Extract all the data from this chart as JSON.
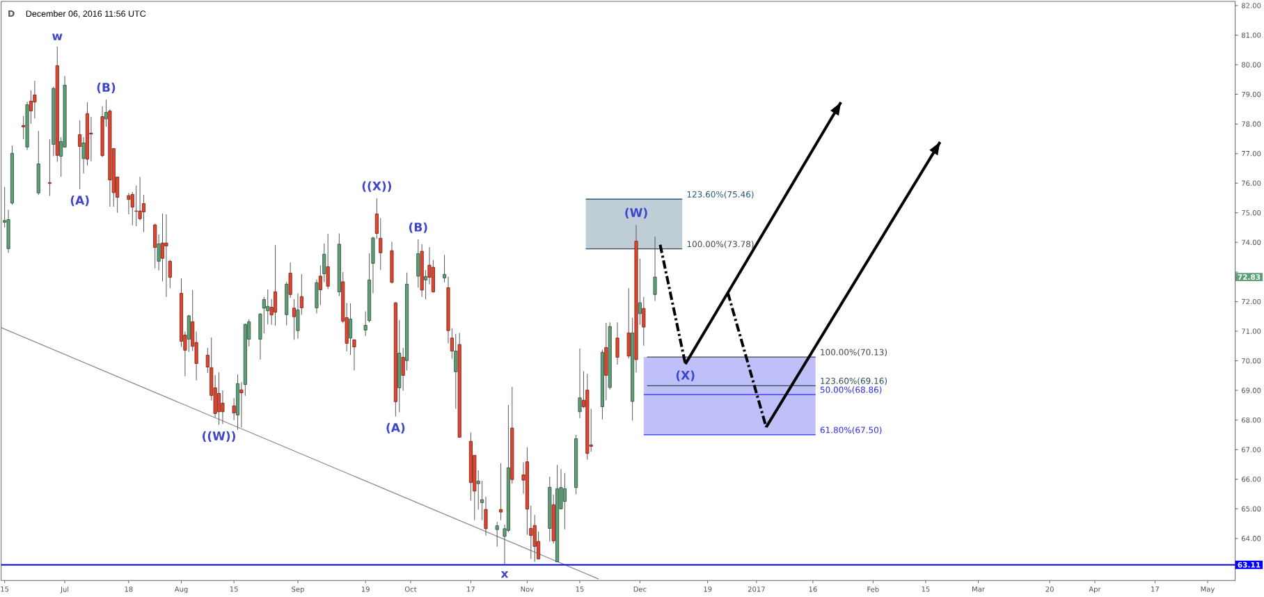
{
  "chart_data": {
    "type": "candlestick",
    "title": "D",
    "subtitle": "December 06, 2016 11:56 UTC",
    "x": [
      "2016-06-15",
      "2016-06-16",
      "2016-06-17",
      "2016-06-20",
      "2016-06-21",
      "2016-06-22",
      "2016-06-23",
      "2016-06-24",
      "2016-06-27",
      "2016-06-28",
      "2016-06-29",
      "2016-06-30",
      "2016-07-01",
      "2016-07-05",
      "2016-07-06",
      "2016-07-07",
      "2016-07-08",
      "2016-07-11",
      "2016-07-12",
      "2016-07-13",
      "2016-07-14",
      "2016-07-15",
      "2016-07-18",
      "2016-07-19",
      "2016-07-20",
      "2016-07-21",
      "2016-07-22",
      "2016-07-25",
      "2016-07-26",
      "2016-07-27",
      "2016-07-28",
      "2016-07-29",
      "2016-08-01",
      "2016-08-02",
      "2016-08-03",
      "2016-08-04",
      "2016-08-05",
      "2016-08-08",
      "2016-08-09",
      "2016-08-10",
      "2016-08-11",
      "2016-08-12",
      "2016-08-15",
      "2016-08-16",
      "2016-08-17",
      "2016-08-18",
      "2016-08-19",
      "2016-08-22",
      "2016-08-23",
      "2016-08-24",
      "2016-08-25",
      "2016-08-26",
      "2016-08-29",
      "2016-08-30",
      "2016-08-31",
      "2016-09-01",
      "2016-09-02",
      "2016-09-06",
      "2016-09-07",
      "2016-09-08",
      "2016-09-09",
      "2016-09-12",
      "2016-09-13",
      "2016-09-14",
      "2016-09-15",
      "2016-09-16",
      "2016-09-19",
      "2016-09-20",
      "2016-09-21",
      "2016-09-22",
      "2016-09-23",
      "2016-09-26",
      "2016-09-27",
      "2016-09-28",
      "2016-09-29",
      "2016-09-30",
      "2016-10-03",
      "2016-10-04",
      "2016-10-05",
      "2016-10-06",
      "2016-10-07",
      "2016-10-10",
      "2016-10-11",
      "2016-10-12",
      "2016-10-13",
      "2016-10-14",
      "2016-10-17",
      "2016-10-18",
      "2016-10-19",
      "2016-10-20",
      "2016-10-21",
      "2016-10-24",
      "2016-10-25",
      "2016-10-26",
      "2016-10-27",
      "2016-10-28",
      "2016-10-31",
      "2016-11-01",
      "2016-11-02",
      "2016-11-03",
      "2016-11-04",
      "2016-11-07",
      "2016-11-08",
      "2016-11-09",
      "2016-11-10",
      "2016-11-11",
      "2016-11-14",
      "2016-11-15",
      "2016-11-16",
      "2016-11-17",
      "2016-11-18",
      "2016-11-21",
      "2016-11-22",
      "2016-11-23",
      "2016-11-25",
      "2016-11-28",
      "2016-11-29",
      "2016-11-30",
      "2016-12-01",
      "2016-12-02",
      "2016-12-05"
    ],
    "ohlc": [
      [
        74.68,
        75.87,
        74.51,
        74.74
      ],
      [
        73.79,
        75.11,
        73.65,
        74.77
      ],
      [
        75.33,
        77.27,
        75.28,
        77.01
      ],
      [
        77.95,
        78.27,
        77.48,
        77.9
      ],
      [
        77.22,
        78.75,
        77.12,
        78.65
      ],
      [
        78.77,
        79.13,
        78.01,
        78.44
      ],
      [
        78.98,
        79.46,
        78.19,
        78.74
      ],
      [
        75.67,
        77.76,
        75.6,
        76.65
      ],
      [
        76.02,
        77.48,
        75.57,
        75.99
      ],
      [
        77.31,
        79.26,
        76.91,
        79.2
      ],
      [
        79.97,
        80.61,
        76.72,
        76.94
      ],
      [
        76.91,
        77.55,
        76.22,
        77.41
      ],
      [
        77.22,
        79.62,
        77.2,
        79.31
      ],
      [
        77.64,
        78.12,
        75.8,
        77.24
      ],
      [
        76.83,
        77.56,
        76.33,
        77.36
      ],
      [
        78.35,
        78.73,
        76.6,
        76.81
      ],
      [
        77.69,
        78.24,
        76.74,
        77.66
      ],
      [
        78.25,
        78.6,
        76.88,
        76.93
      ],
      [
        78.17,
        78.82,
        77.91,
        78.39
      ],
      [
        78.44,
        78.49,
        75.21,
        76.11
      ],
      [
        77.17,
        77.18,
        75.21,
        75.68
      ],
      [
        76.21,
        76.22,
        75.0,
        75.52
      ],
      [
        75.58,
        75.67,
        74.95,
        75.45
      ],
      [
        75.62,
        75.7,
        74.58,
        75.19
      ],
      [
        75.06,
        75.92,
        74.55,
        75.05
      ],
      [
        75.06,
        76.21,
        74.74,
        74.8
      ],
      [
        75.31,
        75.6,
        74.35,
        75.03
      ],
      [
        74.59,
        74.64,
        73.12,
        73.83
      ],
      [
        73.36,
        74.27,
        73.05,
        73.95
      ],
      [
        73.98,
        74.97,
        72.68,
        73.46
      ],
      [
        73.98,
        74.95,
        72.16,
        73.88
      ],
      [
        73.36,
        73.41,
        72.45,
        72.82
      ],
      [
        72.28,
        72.78,
        70.47,
        70.66
      ],
      [
        70.87,
        70.99,
        69.48,
        70.36
      ],
      [
        70.73,
        71.55,
        70.3,
        71.52
      ],
      [
        71.32,
        72.39,
        70.33,
        70.49
      ],
      [
        70.62,
        70.99,
        69.34,
        69.91
      ],
      [
        70.19,
        70.44,
        69.59,
        69.79
      ],
      [
        69.77,
        70.79,
        68.66,
        68.83
      ],
      [
        69.09,
        69.52,
        68.09,
        68.22
      ],
      [
        68.9,
        69.61,
        67.84,
        68.28
      ],
      [
        68.57,
        69.0,
        67.87,
        68.28
      ],
      [
        68.48,
        68.74,
        68.0,
        68.24
      ],
      [
        68.17,
        69.54,
        67.67,
        69.23
      ],
      [
        69.02,
        69.28,
        67.75,
        68.92
      ],
      [
        69.2,
        71.26,
        68.82,
        71.23
      ],
      [
        70.73,
        71.4,
        70.49,
        71.32
      ],
      [
        70.73,
        71.61,
        70.04,
        71.58
      ],
      [
        71.78,
        72.16,
        70.93,
        72.07
      ],
      [
        71.69,
        72.41,
        71.23,
        71.84
      ],
      [
        71.81,
        72.08,
        71.22,
        71.55
      ],
      [
        72.33,
        73.91,
        71.18,
        71.64
      ],
      [
        71.56,
        72.67,
        71.2,
        72.59
      ],
      [
        72.96,
        73.32,
        72.12,
        72.24
      ],
      [
        71.78,
        72.08,
        70.71,
        71.49
      ],
      [
        71.02,
        72.28,
        70.75,
        71.72
      ],
      [
        72.17,
        72.93,
        71.55,
        71.79
      ],
      [
        71.79,
        72.75,
        71.6,
        72.64
      ],
      [
        72.86,
        73.23,
        71.88,
        72.4
      ],
      [
        72.94,
        73.96,
        72.66,
        73.6
      ],
      [
        73.18,
        74.29,
        72.42,
        72.52
      ],
      [
        72.33,
        74.3,
        72.19,
        73.94
      ],
      [
        72.67,
        73.0,
        71.27,
        71.34
      ],
      [
        71.46,
        71.96,
        70.32,
        70.59
      ],
      [
        70.77,
        71.94,
        70.2,
        71.41
      ],
      [
        70.71,
        70.72,
        69.67,
        70.47
      ],
      [
        71.04,
        71.67,
        70.84,
        71.2
      ],
      [
        71.36,
        73.63,
        71.3,
        72.73
      ],
      [
        73.29,
        74.19,
        72.28,
        74.15
      ],
      [
        74.96,
        75.49,
        74.12,
        74.3
      ],
      [
        74.14,
        74.82,
        73.06,
        73.65
      ],
      [
        73.72,
        74.02,
        72.61,
        72.65
      ],
      [
        71.96,
        71.98,
        68.12,
        68.62
      ],
      [
        69.09,
        71.38,
        68.26,
        70.26
      ],
      [
        70.12,
        70.44,
        68.99,
        69.51
      ],
      [
        70.01,
        72.98,
        69.67,
        72.59
      ],
      [
        72.86,
        74.1,
        72.47,
        73.62
      ],
      [
        73.7,
        73.94,
        72.16,
        72.39
      ],
      [
        72.73,
        73.07,
        72.08,
        72.85
      ],
      [
        73.23,
        73.84,
        72.58,
        72.82
      ],
      [
        73.16,
        73.41,
        72.3,
        72.33
      ],
      [
        72.8,
        73.58,
        72.65,
        72.92
      ],
      [
        72.47,
        72.84,
        70.59,
        71.02
      ],
      [
        70.77,
        71.1,
        70.07,
        70.33
      ],
      [
        69.63,
        70.91,
        68.38,
        70.33
      ],
      [
        70.55,
        70.94,
        67.4,
        67.42
      ],
      [
        67.28,
        67.58,
        65.28,
        65.89
      ],
      [
        66.81,
        66.82,
        64.62,
        65.6
      ],
      [
        65.85,
        66.3,
        64.97,
        65.94
      ],
      [
        65.21,
        65.95,
        64.62,
        65.31
      ],
      [
        64.98,
        65.41,
        64.1,
        64.33
      ],
      [
        64.3,
        64.56,
        63.72,
        64.43
      ],
      [
        64.98,
        66.54,
        64.62,
        64.89
      ],
      [
        64.07,
        64.47,
        63.11,
        64.33
      ],
      [
        64.27,
        68.51,
        64.21,
        66.39
      ],
      [
        67.73,
        69.12,
        65.85,
        65.99
      ],
      [
        66.15,
        66.57,
        65.51,
        65.97
      ],
      [
        66.59,
        67.08,
        64.12,
        64.99
      ],
      [
        64.34,
        65.11,
        63.31,
        64.1
      ],
      [
        64.44,
        64.8,
        63.21,
        63.73
      ],
      [
        63.9,
        64.23,
        63.3,
        63.31
      ],
      [
        64.34,
        66.09,
        63.89,
        65.73
      ],
      [
        65.14,
        65.48,
        63.83,
        63.92
      ],
      [
        63.21,
        66.48,
        63.2,
        65.68
      ],
      [
        65.0,
        66.34,
        64.99,
        65.72
      ],
      [
        65.25,
        66.21,
        64.31,
        65.68
      ],
      [
        65.72,
        67.5,
        65.49,
        67.37
      ],
      [
        68.28,
        70.41,
        68.06,
        68.75
      ],
      [
        68.67,
        69.65,
        68.4,
        68.45
      ],
      [
        69.01,
        69.56,
        66.66,
        66.87
      ],
      [
        67.16,
        68.38,
        66.93,
        67.11
      ],
      [
        68.45,
        70.38,
        68.02,
        70.29
      ],
      [
        70.45,
        71.28,
        68.67,
        69.51
      ],
      [
        69.1,
        71.3,
        69.03,
        71.16
      ],
      [
        70.77,
        71.3,
        69.87,
        70.12
      ],
      [
        70.94,
        72.45,
        70.08,
        70.16
      ],
      [
        68.63,
        71.45,
        67.98,
        70.94
      ],
      [
        74.04,
        74.59,
        69.61,
        70.04
      ],
      [
        71.59,
        73.45,
        71.22,
        71.96
      ],
      [
        71.77,
        72.16,
        70.51,
        71.14
      ],
      [
        72.24,
        74.19,
        72.02,
        72.83
      ]
    ],
    "colors": [
      "#5f9f77",
      "#5f9f77",
      "#5f9f77",
      "#e04530",
      "#5f9f77",
      "#e04530",
      "#e04530",
      "#5f9f77",
      "#e04530",
      "#5f9f77",
      "#e04530",
      "#5f9f77",
      "#5f9f77",
      "#e04530",
      "#5f9f77",
      "#e04530",
      "#e04530",
      "#e04530",
      "#5f9f77",
      "#e04530",
      "#e04530",
      "#e04530",
      "#e04530",
      "#e04530",
      "#e04530",
      "#e04530",
      "#e04530",
      "#e04530",
      "#5f9f77",
      "#e04530",
      "#e04530",
      "#e04530",
      "#e04530",
      "#e04530",
      "#5f9f77",
      "#e04530",
      "#e04530",
      "#e04530",
      "#e04530",
      "#e04530",
      "#e04530",
      "#e04530",
      "#e04530",
      "#5f9f77",
      "#e04530",
      "#5f9f77",
      "#5f9f77",
      "#5f9f77",
      "#5f9f77",
      "#5f9f77",
      "#e04530",
      "#e04530",
      "#5f9f77",
      "#e04530",
      "#e04530",
      "#5f9f77",
      "#e04530",
      "#5f9f77",
      "#e04530",
      "#5f9f77",
      "#e04530",
      "#5f9f77",
      "#e04530",
      "#e04530",
      "#5f9f77",
      "#e04530",
      "#5f9f77",
      "#5f9f77",
      "#5f9f77",
      "#e04530",
      "#e04530",
      "#e04530",
      "#e04530",
      "#5f9f77",
      "#e04530",
      "#5f9f77",
      "#5f9f77",
      "#e04530",
      "#5f9f77",
      "#e04530",
      "#e04530",
      "#5f9f77",
      "#e04530",
      "#e04530",
      "#5f9f77",
      "#e04530",
      "#e04530",
      "#e04530",
      "#5f9f77",
      "#5f9f77",
      "#e04530",
      "#5f9f77",
      "#e04530",
      "#5f9f77",
      "#5f9f77",
      "#e04530",
      "#e04530",
      "#e04530",
      "#e04530",
      "#e04530",
      "#e04530",
      "#5f9f77",
      "#e04530",
      "#5f9f77",
      "#5f9f77",
      "#5f9f77",
      "#5f9f77",
      "#5f9f77",
      "#e04530",
      "#e04530",
      "#e04530",
      "#5f9f77",
      "#e04530",
      "#5f9f77",
      "#e04530",
      "#e04530",
      "#5f9f77",
      "#e04530",
      "#5f9f77",
      "#e04530",
      "#5f9f77"
    ],
    "xlim": [
      "2016-06-14T02:00",
      "2017-05-08T08:00"
    ],
    "xticks": [
      {
        "value": "2016-06-15",
        "label": "15"
      },
      {
        "value": "2016-07",
        "label": "Jul"
      },
      {
        "value": "2016-07-18",
        "label": "18"
      },
      {
        "value": "2016-08",
        "label": "Aug"
      },
      {
        "value": "2016-08-15",
        "label": "15"
      },
      {
        "value": "2016-09",
        "label": "Sep"
      },
      {
        "value": "2016-09-19",
        "label": "19"
      },
      {
        "value": "2016-10",
        "label": "Oct"
      },
      {
        "value": "2016-10-17",
        "label": "17"
      },
      {
        "value": "2016-11",
        "label": "Nov"
      },
      {
        "value": "2016-11-15",
        "label": "15"
      },
      {
        "value": "2016-12",
        "label": "Dec"
      },
      {
        "value": "2016-12-19",
        "label": "19"
      },
      {
        "value": "2017",
        "label": "2017"
      },
      {
        "value": "2017-01-16",
        "label": "16"
      },
      {
        "value": "2017-02",
        "label": "Feb"
      },
      {
        "value": "2017-02-15",
        "label": "15"
      },
      {
        "value": "2017-03",
        "label": "Mar"
      },
      {
        "value": "2017-03-20",
        "label": "20"
      },
      {
        "value": "2017-04",
        "label": "Apr"
      },
      {
        "value": "2017-04-17",
        "label": "17"
      },
      {
        "value": "2017-05",
        "label": "May"
      }
    ],
    "ylim": [
      62.58,
      82.14
    ],
    "yticks": [
      {
        "value": 63,
        "label": null
      },
      {
        "value": 64,
        "label": "64.00"
      },
      {
        "value": 65,
        "label": "65.00"
      },
      {
        "value": 66,
        "label": "66.00"
      },
      {
        "value": 67,
        "label": "67.00"
      },
      {
        "value": 68,
        "label": "68.00"
      },
      {
        "value": 69,
        "label": "69.00"
      },
      {
        "value": 70,
        "label": "70.00"
      },
      {
        "value": 71,
        "label": "71.00"
      },
      {
        "value": 72,
        "label": "72.00"
      },
      {
        "value": 73,
        "label": null
      },
      {
        "value": 74,
        "label": "74.00"
      },
      {
        "value": 75,
        "label": "75.00"
      },
      {
        "value": 76,
        "label": "76.00"
      },
      {
        "value": 77,
        "label": "77.00"
      },
      {
        "value": 78,
        "label": "78.00"
      },
      {
        "value": 79,
        "label": "79.00"
      },
      {
        "value": 80,
        "label": "80.00"
      },
      {
        "value": 81,
        "label": "81.00"
      },
      {
        "value": 82,
        "label": "82.00"
      }
    ],
    "series": [
      {
        "type": "line",
        "x": [
          "2016-06-14T02:00",
          "2016-11-20"
        ],
        "values": [
          71.12,
          62.63
        ],
        "color": "#8c8c8c"
      },
      {
        "type": "line",
        "name": "123.60%(75.46)",
        "x": [
          "2016-11-16T14:24",
          "2016-12-12T06:00"
        ],
        "values": [
          75.46,
          75.46
        ],
        "lower": [
          73.78,
          73.78
        ],
        "upper": [
          75.46,
          75.46
        ],
        "color": "#2b5877"
      },
      {
        "type": "line",
        "name": "100.00%(73.78)",
        "x": [
          "2016-11-16T14:24",
          "2016-12-12T06:00"
        ],
        "values": [
          73.78,
          73.78
        ],
        "color": "#3a4a55"
      },
      {
        "type": "line",
        "name": "100.00%(70.13)",
        "x": [
          "2016-12-02T21:36",
          "2017-01-16T17:00"
        ],
        "values": [
          70.13,
          70.13
        ],
        "color": "#444444"
      },
      {
        "type": "line",
        "name": "123.60%(69.16)",
        "x": [
          "2016-12-02T21:36",
          "2017-01-16T17:00"
        ],
        "values": [
          69.16,
          69.16
        ],
        "color": "#2a5050"
      },
      {
        "type": "line",
        "name": "50.00%(68.86)",
        "x": [
          "2016-12-02",
          "2017-01-16T17:00"
        ],
        "values": [
          68.86,
          68.86
        ],
        "lower": [
          67.5,
          67.5
        ],
        "upper": [
          70.13,
          70.13
        ],
        "color": "#2b2bf0"
      },
      {
        "type": "line",
        "name": "61.80%(67.50)",
        "x": [
          "2016-12-02",
          "2017-01-16T17:00"
        ],
        "values": [
          67.5,
          67.5
        ],
        "color": "#2b2bf0"
      },
      {
        "type": "line",
        "x": [
          "2016-12-06T09:00",
          "2016-12-13T02:00"
        ],
        "values": [
          73.92,
          69.89
        ],
        "color": "#000000",
        "line_style": "dashed"
      },
      {
        "type": "line",
        "x": [
          "2016-12-13T02:00",
          "2017-01-23T11:00"
        ],
        "values": [
          69.89,
          78.73
        ],
        "color": "#000000",
        "line_style": "solid"
      },
      {
        "type": "line",
        "x": [
          "2016-12-24T09:00",
          "2017-01-03T14:00"
        ],
        "values": [
          72.3,
          67.76
        ],
        "color": "#000000",
        "line_style": "dashed"
      },
      {
        "type": "line",
        "x": [
          "2017-01-03T14:00",
          "2017-02-18T20:00"
        ],
        "values": [
          67.76,
          77.39
        ],
        "color": "#000000",
        "line_style": "solid"
      }
    ],
    "ref_lines": [
      {
        "axis": "y",
        "value": 63.11,
        "label": "63.11",
        "color": "#0000ff"
      }
    ],
    "annotations": [
      {
        "text": "w",
        "x": "2016-06-29",
        "y": 80.61
      },
      {
        "text": "(B)",
        "x": "2016-07-12",
        "y": 78.82
      },
      {
        "text": "(A)",
        "x": "2016-07-05",
        "y": 75.8
      },
      {
        "text": "((W))",
        "x": "2016-08-11",
        "y": 67.84
      },
      {
        "text": "((X))",
        "x": "2016-09-22",
        "y": 75.49
      },
      {
        "text": "(B)",
        "x": "2016-10-03",
        "y": 74.1
      },
      {
        "text": "(A)",
        "x": "2016-09-27",
        "y": 68.12
      },
      {
        "text": "x",
        "x": "2016-10-26",
        "y": 63.11
      },
      {
        "text": "(W)",
        "x": "2016-11-30",
        "y": 74.59
      },
      {
        "text": "(X)",
        "x": "2016-12-13T02:00",
        "y": 69.89
      },
      {
        "text": "72.83",
        "y": 72.83
      }
    ]
  }
}
